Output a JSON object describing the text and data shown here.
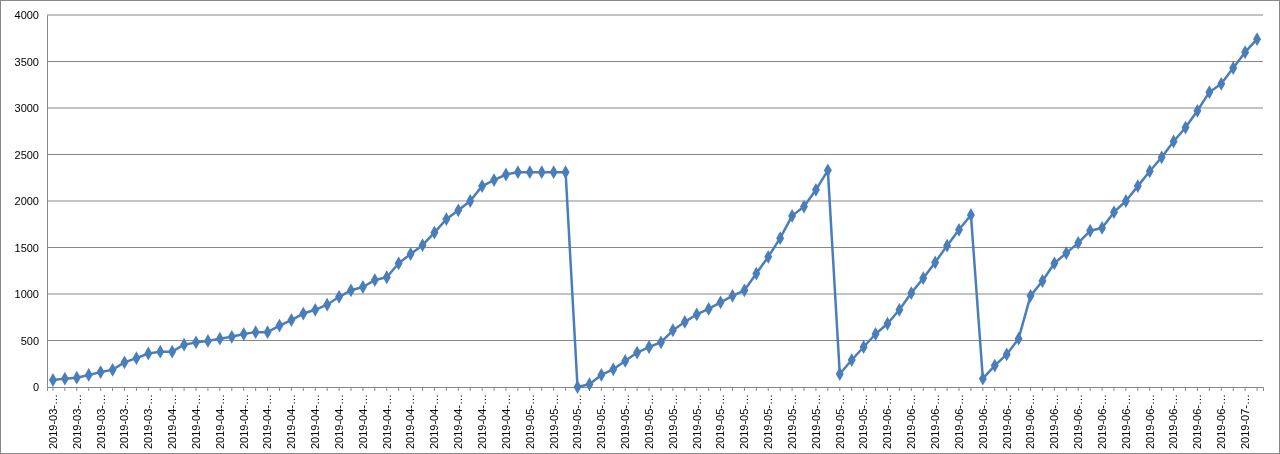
{
  "chart_data": {
    "type": "line",
    "categories": [
      "2019-03-…",
      null,
      "2019-03-…",
      null,
      "2019-03-…",
      null,
      "2019-03-…",
      null,
      "2019-03-…",
      null,
      "2019-04-…",
      null,
      "2019-04-…",
      null,
      "2019-04-…",
      null,
      "2019-04-…",
      null,
      "2019-04-…",
      null,
      "2019-04-…",
      null,
      "2019-04-…",
      null,
      "2019-04-…",
      null,
      "2019-04-…",
      null,
      "2019-04-…",
      null,
      "2019-04-…",
      null,
      "2019-04-…",
      null,
      "2019-04-…",
      null,
      "2019-04-…",
      null,
      "2019-04-…",
      null,
      "2019-05-…",
      null,
      "2019-05-…",
      null,
      "2019-05-…",
      null,
      "2019-05-…",
      null,
      "2019-05-…",
      null,
      "2019-05-…",
      null,
      "2019-05-…",
      null,
      "2019-05-…",
      null,
      "2019-05-…",
      null,
      "2019-05-…",
      null,
      "2019-05-…",
      null,
      "2019-05-…",
      null,
      "2019-05-…",
      null,
      "2019-05-…",
      null,
      "2019-05-…",
      null,
      "2019-06-…",
      null,
      "2019-06-…",
      null,
      "2019-06-…",
      null,
      "2019-06-…",
      null,
      "2019-06-…",
      null,
      "2019-06-…",
      null,
      "2019-06-…",
      null,
      "2019-06-…",
      null,
      "2019-06-…",
      null,
      "2019-06-…",
      null,
      "2019-06-…",
      null,
      "2019-06-…",
      null,
      "2019-06-…",
      null,
      "2019-06-…",
      null,
      "2019-06-…",
      null,
      "2019-07-…",
      null
    ],
    "series": [
      {
        "color": "#4a7ebb",
        "values": [
          75,
          90,
          100,
          130,
          160,
          185,
          265,
          310,
          360,
          380,
          380,
          455,
          480,
          495,
          520,
          540,
          570,
          590,
          590,
          660,
          720,
          790,
          830,
          885,
          970,
          1040,
          1075,
          1150,
          1180,
          1330,
          1430,
          1525,
          1660,
          1805,
          1900,
          2000,
          2160,
          2225,
          2285,
          2310,
          2310,
          2310,
          2310,
          2310,
          0,
          30,
          130,
          190,
          280,
          370,
          430,
          480,
          610,
          700,
          780,
          840,
          910,
          980,
          1040,
          1220,
          1400,
          1600,
          1840,
          1940,
          2120,
          2330,
          140,
          290,
          430,
          570,
          680,
          830,
          1010,
          1170,
          1340,
          1520,
          1690,
          1850,
          90,
          230,
          350,
          520,
          980,
          1140,
          1330,
          1440,
          1550,
          1680,
          1710,
          1880,
          2000,
          2160,
          2320,
          2470,
          2640,
          2790,
          2970,
          3170,
          3260,
          3430,
          3600,
          3740
        ]
      }
    ],
    "ylim": [
      0,
      4000
    ],
    "yticks": [
      0,
      500,
      1000,
      1500,
      2000,
      2500,
      3000,
      3500,
      4000
    ],
    "grid": "y",
    "marker": "diamond",
    "line_style": "solid",
    "legend": false
  }
}
